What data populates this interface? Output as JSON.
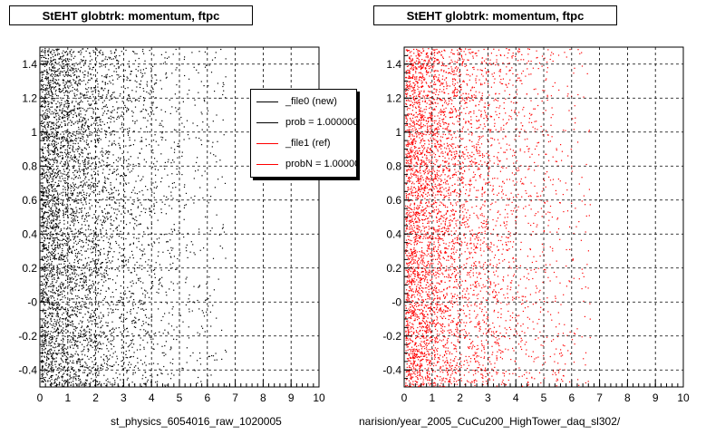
{
  "panels": {
    "left": {
      "title": "StEHT globtrk: momentum, ftpc",
      "footer": "st_physics_6054016_raw_1020005"
    },
    "right": {
      "title": "StEHT globtrk: momentum, ftpc",
      "footer": "narision/year_2005_CuCu200_HighTower_daq_sl302/"
    }
  },
  "legend": {
    "entries": [
      {
        "label": "_file0 (new)",
        "color": "#000000"
      },
      {
        "label": "prob = 1.000000",
        "color": "#000000"
      },
      {
        "label": "_file1 (ref)",
        "color": "#ff0000"
      },
      {
        "label": "probN = 1.000000",
        "color": "#ff0000"
      }
    ]
  },
  "colors": {
    "new": "#000000",
    "ref": "#ff0000"
  },
  "chart_data": [
    {
      "type": "scatter",
      "title": "StEHT globtrk: momentum, ftpc",
      "xlabel": "",
      "ylabel": "",
      "xlim": [
        0,
        10
      ],
      "ylim": [
        -0.5,
        1.5
      ],
      "xticks": [
        "0",
        "1",
        "2",
        "3",
        "4",
        "5",
        "6",
        "7",
        "8",
        "9",
        "10"
      ],
      "yticks": [
        "-0.4",
        "-0.2",
        "-0",
        "0.2",
        "0.4",
        "0.6",
        "0.8",
        "1",
        "1.2",
        "1.4"
      ],
      "grid": true,
      "legend_position": "right",
      "series": [
        {
          "name": "_file0 (new)",
          "color": "#000000",
          "density_profile": "concentrated near x=0, decaying toward x=10"
        }
      ]
    },
    {
      "type": "scatter",
      "title": "StEHT globtrk: momentum, ftpc",
      "xlabel": "",
      "ylabel": "",
      "xlim": [
        0,
        10
      ],
      "ylim": [
        -0.5,
        1.5
      ],
      "xticks": [
        "0",
        "1",
        "2",
        "3",
        "4",
        "5",
        "6",
        "7",
        "8",
        "9",
        "10"
      ],
      "yticks": [
        "-0.4",
        "-0.2",
        "-0",
        "0.2",
        "0.4",
        "0.6",
        "0.8",
        "1",
        "1.2",
        "1.4"
      ],
      "grid": true,
      "series": [
        {
          "name": "_file1 (ref)",
          "color": "#ff0000",
          "density_profile": "concentrated near x=0, decaying toward x=10"
        }
      ]
    }
  ]
}
